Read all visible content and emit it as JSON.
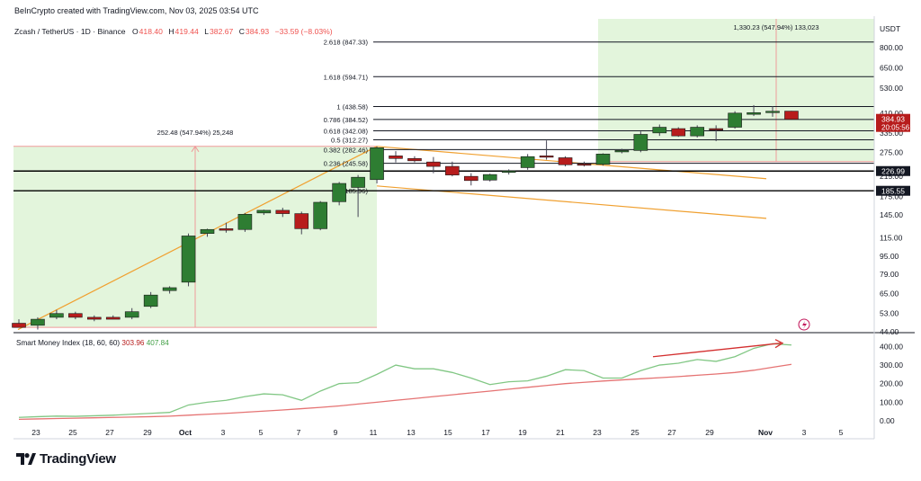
{
  "header": {
    "credit": "BeInCrypto created with TradingView.com, Nov 03, 2025 03:54 UTC",
    "symbol": "Zcash / TetherUS · 1D · Binance",
    "ohlc": [
      {
        "label": "O",
        "value": "418.40"
      },
      {
        "label": "H",
        "value": "419.44"
      },
      {
        "label": "L",
        "value": "382.67"
      },
      {
        "label": "C",
        "value": "384.93"
      }
    ],
    "change": "−33.59 (−8.03%)"
  },
  "logo": {
    "text": "TradingView"
  },
  "colors": {
    "up": "#2e7d32",
    "down": "#b71c1c",
    "zone": "#e3f5dc",
    "target_red": "#ef9a9a",
    "trend": "#f0a030",
    "smi": "#81c784",
    "signal": "#e57373"
  },
  "chart_data": {
    "type": "candlestick",
    "title": "Zcash / TetherUS · 1D · Binance",
    "currency_label": "USDT",
    "y_scale": "log",
    "y_ticks": [
      44,
      53,
      65,
      79,
      95,
      115,
      145,
      175,
      215,
      275,
      335,
      410,
      530,
      650,
      800
    ],
    "y_tick_labels": [
      "44.00",
      "53.00",
      "65.00",
      "79.00",
      "95.00",
      "115.00",
      "145.00",
      "175.00",
      "215.00",
      "275.00",
      "335.00",
      "410.00",
      "530.00",
      "650.00",
      "800.00"
    ],
    "x_ticks": [
      "23",
      "25",
      "27",
      "29",
      "Oct",
      "3",
      "5",
      "7",
      "9",
      "11",
      "13",
      "15",
      "17",
      "19",
      "21",
      "23",
      "25",
      "27",
      "29",
      "Nov",
      "3",
      "5"
    ],
    "candles": [
      {
        "o": 48,
        "h": 50,
        "l": 46,
        "c": 46
      },
      {
        "o": 47,
        "h": 51,
        "l": 45,
        "c": 50
      },
      {
        "o": 51,
        "h": 55,
        "l": 50,
        "c": 53
      },
      {
        "o": 53,
        "h": 54,
        "l": 50,
        "c": 51
      },
      {
        "o": 51,
        "h": 52,
        "l": 49,
        "c": 50
      },
      {
        "o": 51,
        "h": 52,
        "l": 50,
        "c": 50
      },
      {
        "o": 51,
        "h": 56,
        "l": 50,
        "c": 54
      },
      {
        "o": 57,
        "h": 66,
        "l": 56,
        "c": 64
      },
      {
        "o": 67,
        "h": 70,
        "l": 65,
        "c": 69
      },
      {
        "o": 73,
        "h": 120,
        "l": 70,
        "c": 117
      },
      {
        "o": 120,
        "h": 126,
        "l": 116,
        "c": 125
      },
      {
        "o": 126,
        "h": 134,
        "l": 121,
        "c": 124
      },
      {
        "o": 125,
        "h": 148,
        "l": 122,
        "c": 146
      },
      {
        "o": 148,
        "h": 153,
        "l": 145,
        "c": 152
      },
      {
        "o": 152,
        "h": 156,
        "l": 142,
        "c": 147
      },
      {
        "o": 147,
        "h": 150,
        "l": 119,
        "c": 126
      },
      {
        "o": 126,
        "h": 167,
        "l": 124,
        "c": 165
      },
      {
        "o": 166,
        "h": 203,
        "l": 160,
        "c": 200
      },
      {
        "o": 192,
        "h": 218,
        "l": 142,
        "c": 213
      },
      {
        "o": 208,
        "h": 292,
        "l": 200,
        "c": 288
      },
      {
        "o": 265,
        "h": 278,
        "l": 248,
        "c": 258
      },
      {
        "o": 258,
        "h": 264,
        "l": 248,
        "c": 252
      },
      {
        "o": 249,
        "h": 262,
        "l": 222,
        "c": 238
      },
      {
        "o": 238,
        "h": 250,
        "l": 215,
        "c": 218
      },
      {
        "o": 215,
        "h": 222,
        "l": 196,
        "c": 206
      },
      {
        "o": 207,
        "h": 221,
        "l": 204,
        "c": 219
      },
      {
        "o": 224,
        "h": 231,
        "l": 219,
        "c": 227
      },
      {
        "o": 235,
        "h": 270,
        "l": 230,
        "c": 263
      },
      {
        "o": 265,
        "h": 310,
        "l": 255,
        "c": 262
      },
      {
        "o": 260,
        "h": 264,
        "l": 238,
        "c": 242
      },
      {
        "o": 244,
        "h": 250,
        "l": 238,
        "c": 243
      },
      {
        "o": 243,
        "h": 272,
        "l": 240,
        "c": 270
      },
      {
        "o": 276,
        "h": 285,
        "l": 272,
        "c": 280
      },
      {
        "o": 280,
        "h": 340,
        "l": 275,
        "c": 330
      },
      {
        "o": 335,
        "h": 365,
        "l": 325,
        "c": 355
      },
      {
        "o": 350,
        "h": 355,
        "l": 322,
        "c": 325
      },
      {
        "o": 325,
        "h": 362,
        "l": 320,
        "c": 355
      },
      {
        "o": 350,
        "h": 362,
        "l": 308,
        "c": 345
      },
      {
        "o": 355,
        "h": 418,
        "l": 350,
        "c": 410
      },
      {
        "o": 405,
        "h": 445,
        "l": 398,
        "c": 412
      },
      {
        "o": 412,
        "h": 440,
        "l": 395,
        "c": 418
      },
      {
        "o": 418.4,
        "h": 419.44,
        "l": 382.67,
        "c": 384.93
      }
    ],
    "fib_levels": [
      {
        "label": "0 (185.96)",
        "value": 185.96
      },
      {
        "label": "0.236 (245.58)",
        "value": 245.58
      },
      {
        "label": "0.382 (282.46)",
        "value": 282.46
      },
      {
        "label": "0.5 (312.27)",
        "value": 312.27
      },
      {
        "label": "0.618 (342.08)",
        "value": 342.08
      },
      {
        "label": "0.786 (384.52)",
        "value": 384.52
      },
      {
        "label": "1 (438.58)",
        "value": 438.58
      },
      {
        "label": "1.618 (594.71)",
        "value": 594.71
      },
      {
        "label": "2.618 (847.33)",
        "value": 847.33
      }
    ],
    "horizontal_lines": [
      {
        "value": 226.99,
        "label": "226.99"
      },
      {
        "value": 185.55,
        "label": "185.55"
      }
    ],
    "last_price": {
      "value": 384.93,
      "label": "384.93",
      "countdown": "20:05:56"
    },
    "measurements": [
      {
        "label": "252.48 (547.94%) 25,248"
      },
      {
        "label": "1,330.23 (547.94%) 133,023"
      }
    ],
    "indicator": {
      "name": "Smart Money Index (18, 60, 60)",
      "values": [
        "303.96",
        "407.84"
      ],
      "y_ticks": [
        0,
        100,
        200,
        300,
        400
      ],
      "y_tick_labels": [
        "0.00",
        "100.00",
        "200.00",
        "300.00",
        "400.00"
      ],
      "smi": [
        18,
        22,
        25,
        24,
        27,
        30,
        35,
        40,
        45,
        85,
        100,
        110,
        130,
        145,
        140,
        110,
        160,
        200,
        205,
        250,
        300,
        280,
        280,
        260,
        230,
        195,
        210,
        215,
        240,
        275,
        270,
        230,
        230,
        270,
        300,
        310,
        330,
        320,
        345,
        390,
        415,
        408
      ],
      "signal": [
        8,
        10,
        12,
        14,
        16,
        18,
        20,
        22,
        25,
        30,
        35,
        40,
        46,
        52,
        58,
        65,
        72,
        80,
        90,
        100,
        110,
        120,
        130,
        140,
        150,
        160,
        170,
        180,
        190,
        200,
        207,
        214,
        220,
        226,
        232,
        238,
        245,
        252,
        260,
        272,
        288,
        304
      ]
    }
  }
}
